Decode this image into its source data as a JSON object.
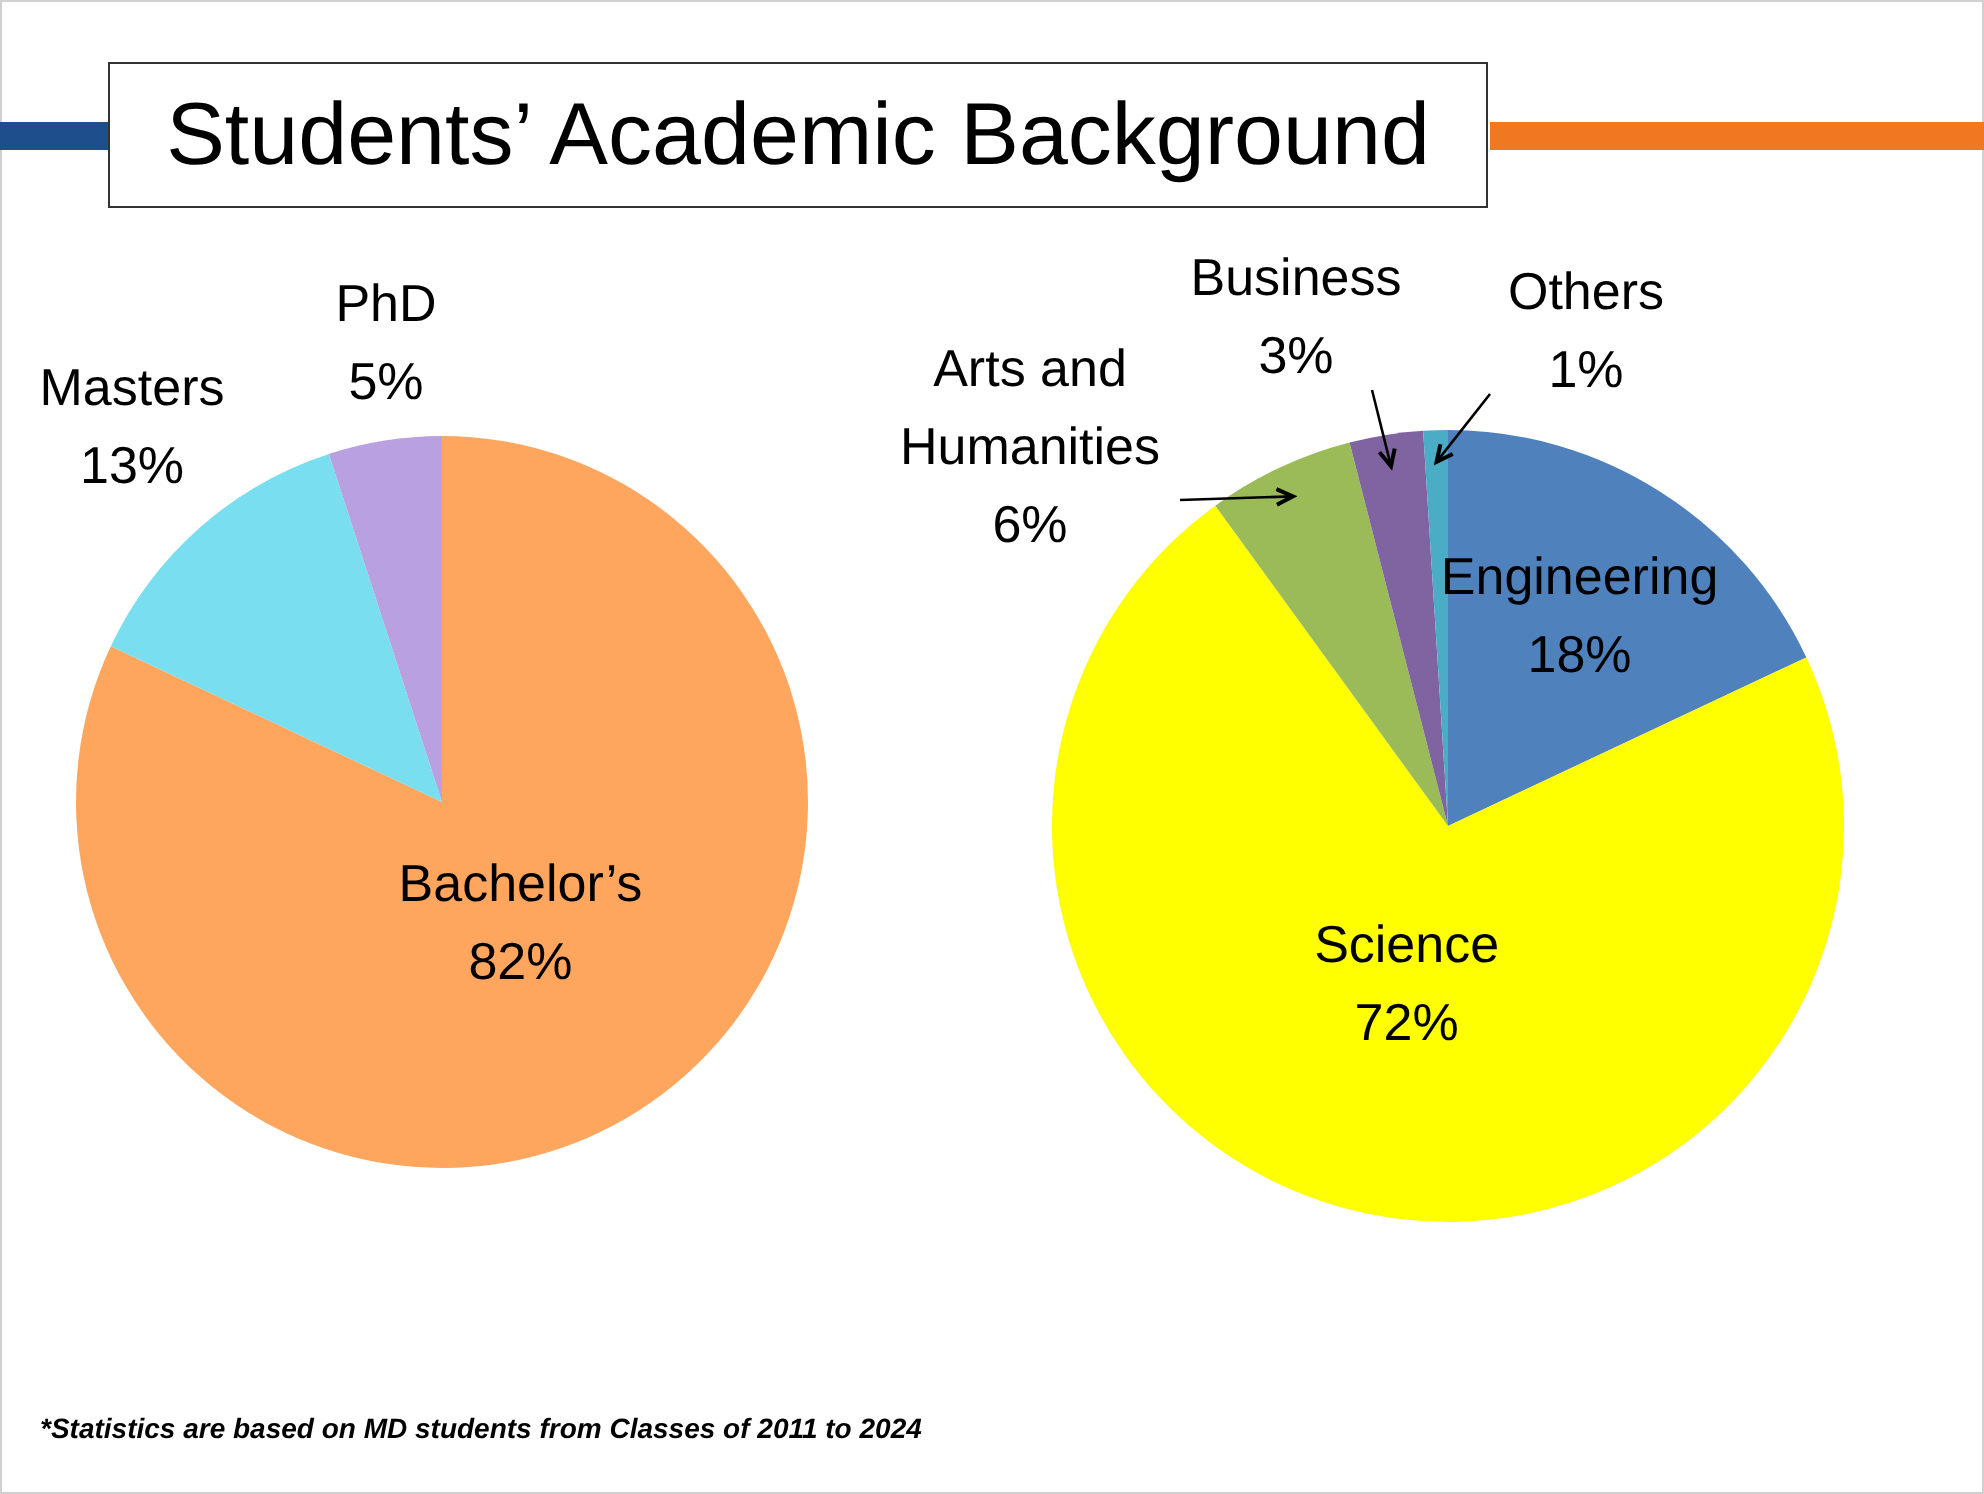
{
  "chart_data": [
    {
      "type": "pie",
      "title": "Students’ Academic Background",
      "categories": [
        "Bachelor’s",
        "Masters",
        "PhD"
      ],
      "values": [
        82,
        13,
        5
      ],
      "colors": [
        "#ffa65e",
        "#79def0",
        "#b9a0e0"
      ],
      "value_labels": [
        "82%",
        "13%",
        "5%"
      ],
      "legend": false
    },
    {
      "type": "pie",
      "categories": [
        "Engineering",
        "Science",
        "Arts and Humanities",
        "Business",
        "Others"
      ],
      "values": [
        18,
        72,
        6,
        3,
        1
      ],
      "colors": [
        "#4f81bd",
        "#ffff00",
        "#9bbb59",
        "#8064a2",
        "#4bacc6"
      ],
      "value_labels": [
        "18%",
        "72%",
        "6%",
        "3%",
        "1%"
      ],
      "legend": false,
      "annotations": [
        "*Statistics are based on MD students from Classes of 2011 to 2024"
      ]
    }
  ]
}
